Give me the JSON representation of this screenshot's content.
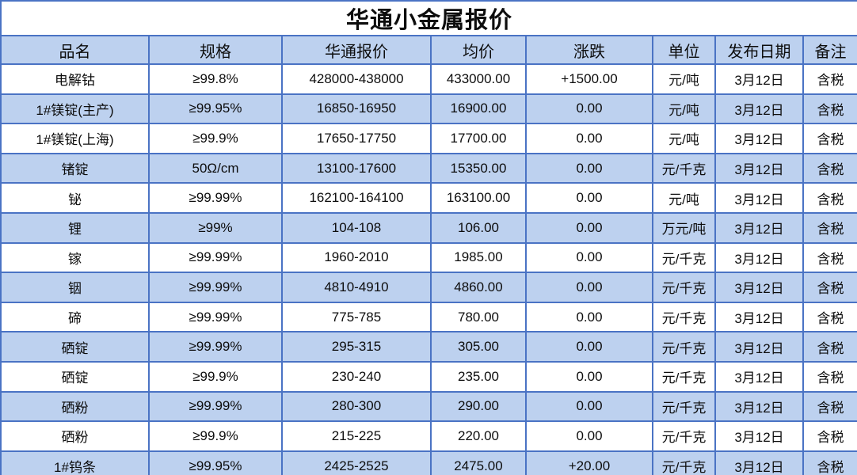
{
  "title": "华通小金属报价",
  "colors": {
    "grid_border": "#4a73c4",
    "header_fill": "#bdd1ef",
    "alt_row_fill": "#bdd1ef",
    "row_fill": "#ffffff",
    "text": "#0d0d0d"
  },
  "table": {
    "headers": [
      "品名",
      "规格",
      "华通报价",
      "均价",
      "涨跌",
      "单位",
      "发布日期",
      "备注"
    ],
    "rows": [
      {
        "cells": [
          "电解钴",
          "≥99.8%",
          "428000-438000",
          "433000.00",
          "+1500.00",
          "元/吨",
          "3月12日",
          "含税"
        ]
      },
      {
        "cells": [
          "1#镁锭(主产)",
          "≥99.95%",
          "16850-16950",
          "16900.00",
          "0.00",
          "元/吨",
          "3月12日",
          "含税"
        ]
      },
      {
        "cells": [
          "1#镁锭(上海)",
          "≥99.9%",
          "17650-17750",
          "17700.00",
          "0.00",
          "元/吨",
          "3月12日",
          "含税"
        ]
      },
      {
        "cells": [
          "锗锭",
          "50Ω/cm",
          "13100-17600",
          "15350.00",
          "0.00",
          "元/千克",
          "3月12日",
          "含税"
        ]
      },
      {
        "cells": [
          "铋",
          "≥99.99%",
          "162100-164100",
          "163100.00",
          "0.00",
          "元/吨",
          "3月12日",
          "含税"
        ]
      },
      {
        "cells": [
          "锂",
          "≥99%",
          "104-108",
          "106.00",
          "0.00",
          "万元/吨",
          "3月12日",
          "含税"
        ]
      },
      {
        "cells": [
          "镓",
          "≥99.99%",
          "1960-2010",
          "1985.00",
          "0.00",
          "元/千克",
          "3月12日",
          "含税"
        ]
      },
      {
        "cells": [
          "铟",
          "≥99.99%",
          "4810-4910",
          "4860.00",
          "0.00",
          "元/千克",
          "3月12日",
          "含税"
        ]
      },
      {
        "cells": [
          "碲",
          "≥99.99%",
          "775-785",
          "780.00",
          "0.00",
          "元/千克",
          "3月12日",
          "含税"
        ]
      },
      {
        "cells": [
          "硒锭",
          "≥99.99%",
          "295-315",
          "305.00",
          "0.00",
          "元/千克",
          "3月12日",
          "含税"
        ]
      },
      {
        "cells": [
          "硒锭",
          "≥99.9%",
          "230-240",
          "235.00",
          "0.00",
          "元/千克",
          "3月12日",
          "含税"
        ]
      },
      {
        "cells": [
          "硒粉",
          "≥99.99%",
          "280-300",
          "290.00",
          "0.00",
          "元/千克",
          "3月12日",
          "含税"
        ]
      },
      {
        "cells": [
          "硒粉",
          "≥99.9%",
          "215-225",
          "220.00",
          "0.00",
          "元/千克",
          "3月12日",
          "含税"
        ]
      },
      {
        "cells": [
          "1#钨条",
          "≥99.95%",
          "2425-2525",
          "2475.00",
          "+20.00",
          "元/千克",
          "3月12日",
          "含税"
        ]
      }
    ]
  }
}
